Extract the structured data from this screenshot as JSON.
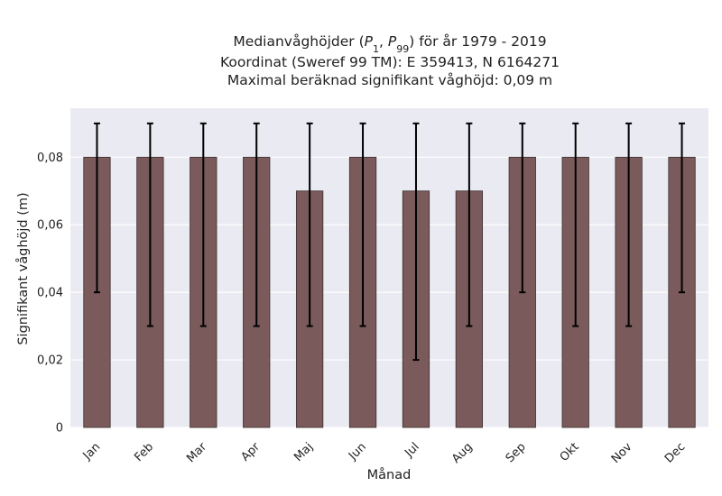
{
  "chart_data": {
    "type": "bar",
    "title_lines": [
      "Medianvåghöjder (P1, P99) för år 1979 - 2019",
      "Koordinat (Sweref 99 TM): E 359413, N 6164271",
      "Maximal beräknad signifikant våghöjd: 0,09 m"
    ],
    "xlabel": "Månad",
    "ylabel": "Signifikant våghöjd (m)",
    "categories": [
      "Jan",
      "Feb",
      "Mar",
      "Apr",
      "Maj",
      "Jun",
      "Jul",
      "Aug",
      "Sep",
      "Okt",
      "Nov",
      "Dec"
    ],
    "values": [
      0.08,
      0.08,
      0.08,
      0.08,
      0.07,
      0.08,
      0.07,
      0.07,
      0.08,
      0.08,
      0.08,
      0.08
    ],
    "error_low": [
      0.04,
      0.03,
      0.03,
      0.03,
      0.03,
      0.03,
      0.02,
      0.03,
      0.04,
      0.03,
      0.03,
      0.04
    ],
    "error_high": [
      0.09,
      0.09,
      0.09,
      0.09,
      0.09,
      0.09,
      0.09,
      0.09,
      0.09,
      0.09,
      0.09,
      0.09
    ],
    "ylim": [
      0,
      0.0945
    ],
    "yticks": [
      0,
      0.02,
      0.04,
      0.06,
      0.08
    ],
    "ytick_labels": [
      "0",
      "0,02",
      "0,04",
      "0,06",
      "0,08"
    ],
    "grid": true,
    "colors": {
      "bar_fill": "#7a5a5a",
      "bar_edge": "#3e2f2f",
      "error_bar": "#000000",
      "plot_background": "#eaeaf2",
      "grid": "#ffffff"
    }
  }
}
